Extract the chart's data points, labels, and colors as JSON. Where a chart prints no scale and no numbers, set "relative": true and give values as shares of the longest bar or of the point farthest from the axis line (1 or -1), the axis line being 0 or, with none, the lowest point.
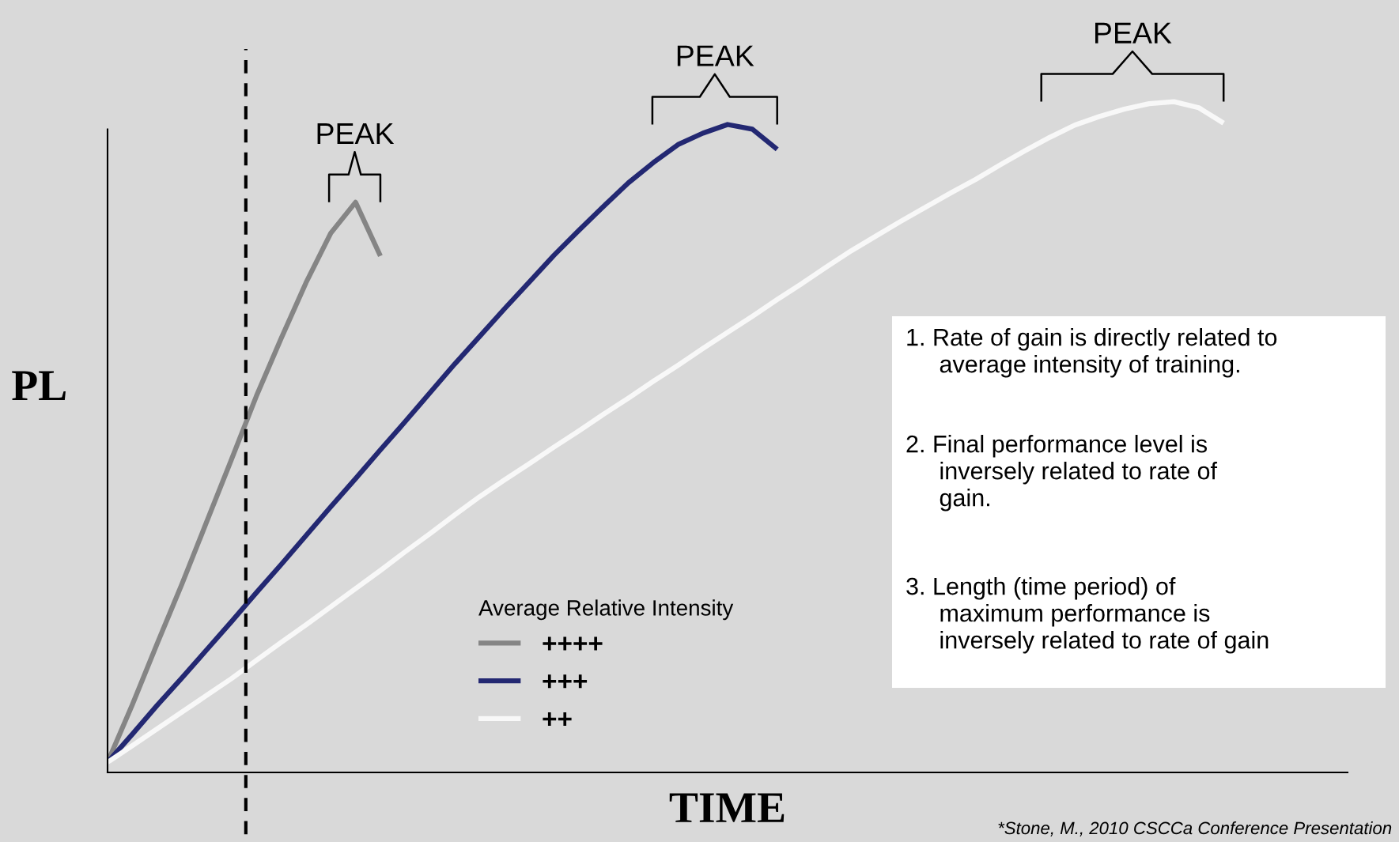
{
  "chart_data": {
    "type": "line",
    "relative": true,
    "xlabel": "TIME",
    "ylabel": "PL",
    "legend_title": "Average Relative Intensity",
    "legend": "bottom",
    "grid": false,
    "marker": "none",
    "line_style": "solid",
    "categories": [
      null,
      null,
      null,
      null,
      null,
      null,
      null,
      null,
      null,
      null,
      null,
      null,
      null,
      null,
      null,
      null,
      null,
      null,
      null,
      null,
      null,
      null,
      null,
      null,
      null,
      null,
      null,
      null,
      null,
      null,
      null,
      null,
      null,
      null,
      null,
      null,
      null,
      null,
      null,
      null,
      null,
      null,
      null,
      null,
      null,
      null,
      null,
      null,
      null,
      null,
      null
    ],
    "series": [
      {
        "name": "++++",
        "color": "#858585",
        "values": [
          0.015,
          0.101,
          0.192,
          0.281,
          0.374,
          0.467,
          0.561,
          0.647,
          0.73,
          0.804,
          0.85,
          0.77,
          null,
          null,
          null,
          null,
          null,
          null,
          null,
          null,
          null,
          null,
          null,
          null,
          null,
          null,
          null,
          null,
          null,
          null,
          null,
          null,
          null,
          null,
          null,
          null,
          null,
          null,
          null,
          null,
          null,
          null,
          null,
          null,
          null,
          null,
          null,
          null,
          null,
          null,
          null
        ]
      },
      {
        "name": "+++",
        "color": "#232872",
        "values": [
          0.015,
          0.057,
          0.1,
          0.141,
          0.183,
          0.225,
          0.268,
          0.31,
          0.353,
          0.396,
          0.438,
          0.481,
          0.523,
          0.566,
          0.609,
          0.65,
          0.691,
          0.731,
          0.771,
          0.808,
          0.844,
          0.879,
          0.909,
          0.936,
          0.953,
          0.966,
          0.959,
          0.929,
          null,
          null,
          null,
          null,
          null,
          null,
          null,
          null,
          null,
          null,
          null,
          null,
          null,
          null,
          null,
          null,
          null,
          null,
          null,
          null,
          null,
          null,
          null
        ]
      },
      {
        "name": "++",
        "color": "#f8f8f8",
        "values": [
          0.015,
          0.04,
          0.065,
          0.09,
          0.115,
          0.14,
          0.167,
          0.194,
          0.22,
          0.247,
          0.274,
          0.301,
          0.329,
          0.356,
          0.384,
          0.411,
          0.436,
          0.46,
          0.485,
          0.509,
          0.534,
          0.558,
          0.583,
          0.607,
          0.632,
          0.656,
          0.68,
          0.705,
          0.729,
          0.754,
          0.778,
          0.8,
          0.822,
          0.843,
          0.864,
          0.884,
          0.906,
          0.927,
          0.947,
          0.965,
          0.978,
          0.989,
          0.997,
          1.0,
          0.991,
          0.968,
          null,
          null,
          null,
          null,
          null
        ]
      }
    ],
    "annotations": [
      "PEAK",
      "PEAK",
      "PEAK",
      "1. Rate of gain is directly related to\n     average intensity of training.",
      "2. Final performance level is\n     inversely related to rate of\n     gain.",
      "3. Length (time period) of\n     maximum performance is\n     inversely related to rate of gain",
      "*Stone, M., 2010 CSCCa Conference Presentation"
    ]
  }
}
